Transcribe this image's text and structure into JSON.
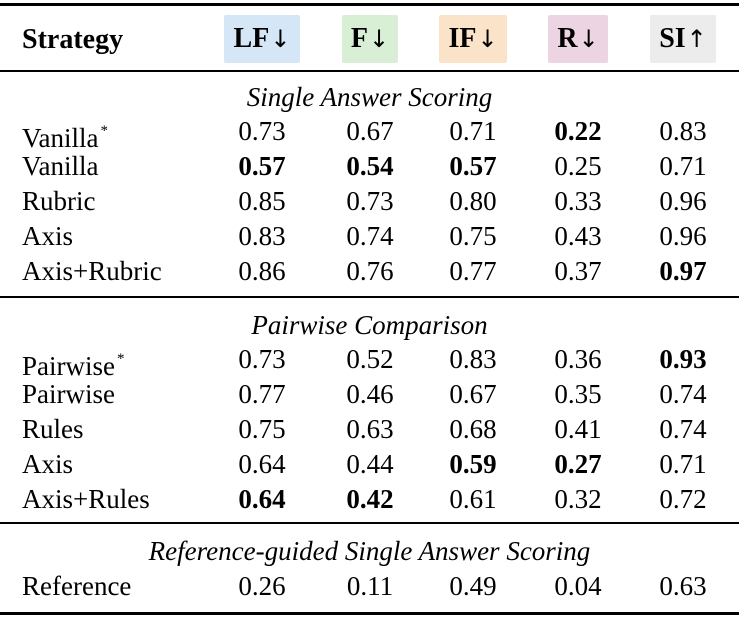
{
  "header": {
    "strategy": "Strategy",
    "columns": [
      {
        "label": "LF",
        "arrow": "↓",
        "color": "#d5e6f7"
      },
      {
        "label": "F",
        "arrow": "↓",
        "color": "#d9efd5"
      },
      {
        "label": "IF",
        "arrow": "↓",
        "color": "#fbe3c9"
      },
      {
        "label": "R",
        "arrow": "↓",
        "color": "#ecd4e3"
      },
      {
        "label": "SI",
        "arrow": "↑",
        "color": "#ececec"
      }
    ]
  },
  "sections": [
    {
      "title": "Single Answer Scoring",
      "rows": [
        {
          "name": "Vanilla",
          "asterisk": "*",
          "values": [
            "0.73",
            "0.67",
            "0.71",
            "0.22",
            "0.83"
          ],
          "bold": [
            false,
            false,
            false,
            true,
            false
          ]
        },
        {
          "name": "Vanilla",
          "asterisk": "",
          "values": [
            "0.57",
            "0.54",
            "0.57",
            "0.25",
            "0.71"
          ],
          "bold": [
            true,
            true,
            true,
            false,
            false
          ]
        },
        {
          "name": "Rubric",
          "asterisk": "",
          "values": [
            "0.85",
            "0.73",
            "0.80",
            "0.33",
            "0.96"
          ],
          "bold": [
            false,
            false,
            false,
            false,
            false
          ]
        },
        {
          "name": "Axis",
          "asterisk": "",
          "values": [
            "0.83",
            "0.74",
            "0.75",
            "0.43",
            "0.96"
          ],
          "bold": [
            false,
            false,
            false,
            false,
            false
          ]
        },
        {
          "name": "Axis+Rubric",
          "asterisk": "",
          "values": [
            "0.86",
            "0.76",
            "0.77",
            "0.37",
            "0.97"
          ],
          "bold": [
            false,
            false,
            false,
            false,
            true
          ]
        }
      ]
    },
    {
      "title": "Pairwise Comparison",
      "rows": [
        {
          "name": "Pairwise",
          "asterisk": "*",
          "values": [
            "0.73",
            "0.52",
            "0.83",
            "0.36",
            "0.93"
          ],
          "bold": [
            false,
            false,
            false,
            false,
            true
          ]
        },
        {
          "name": "Pairwise",
          "asterisk": "",
          "values": [
            "0.77",
            "0.46",
            "0.67",
            "0.35",
            "0.74"
          ],
          "bold": [
            false,
            false,
            false,
            false,
            false
          ]
        },
        {
          "name": "Rules",
          "asterisk": "",
          "values": [
            "0.75",
            "0.63",
            "0.68",
            "0.41",
            "0.74"
          ],
          "bold": [
            false,
            false,
            false,
            false,
            false
          ]
        },
        {
          "name": "Axis",
          "asterisk": "",
          "values": [
            "0.64",
            "0.44",
            "0.59",
            "0.27",
            "0.71"
          ],
          "bold": [
            false,
            false,
            true,
            true,
            false
          ]
        },
        {
          "name": "Axis+Rules",
          "asterisk": "",
          "values": [
            "0.64",
            "0.42",
            "0.61",
            "0.32",
            "0.72"
          ],
          "bold": [
            true,
            true,
            false,
            false,
            false
          ]
        }
      ]
    },
    {
      "title": "Reference-guided Single Answer Scoring",
      "rows": [
        {
          "name": "Reference",
          "asterisk": "",
          "values": [
            "0.26",
            "0.11",
            "0.49",
            "0.04",
            "0.63"
          ],
          "bold": [
            false,
            false,
            false,
            false,
            false
          ]
        }
      ]
    }
  ]
}
